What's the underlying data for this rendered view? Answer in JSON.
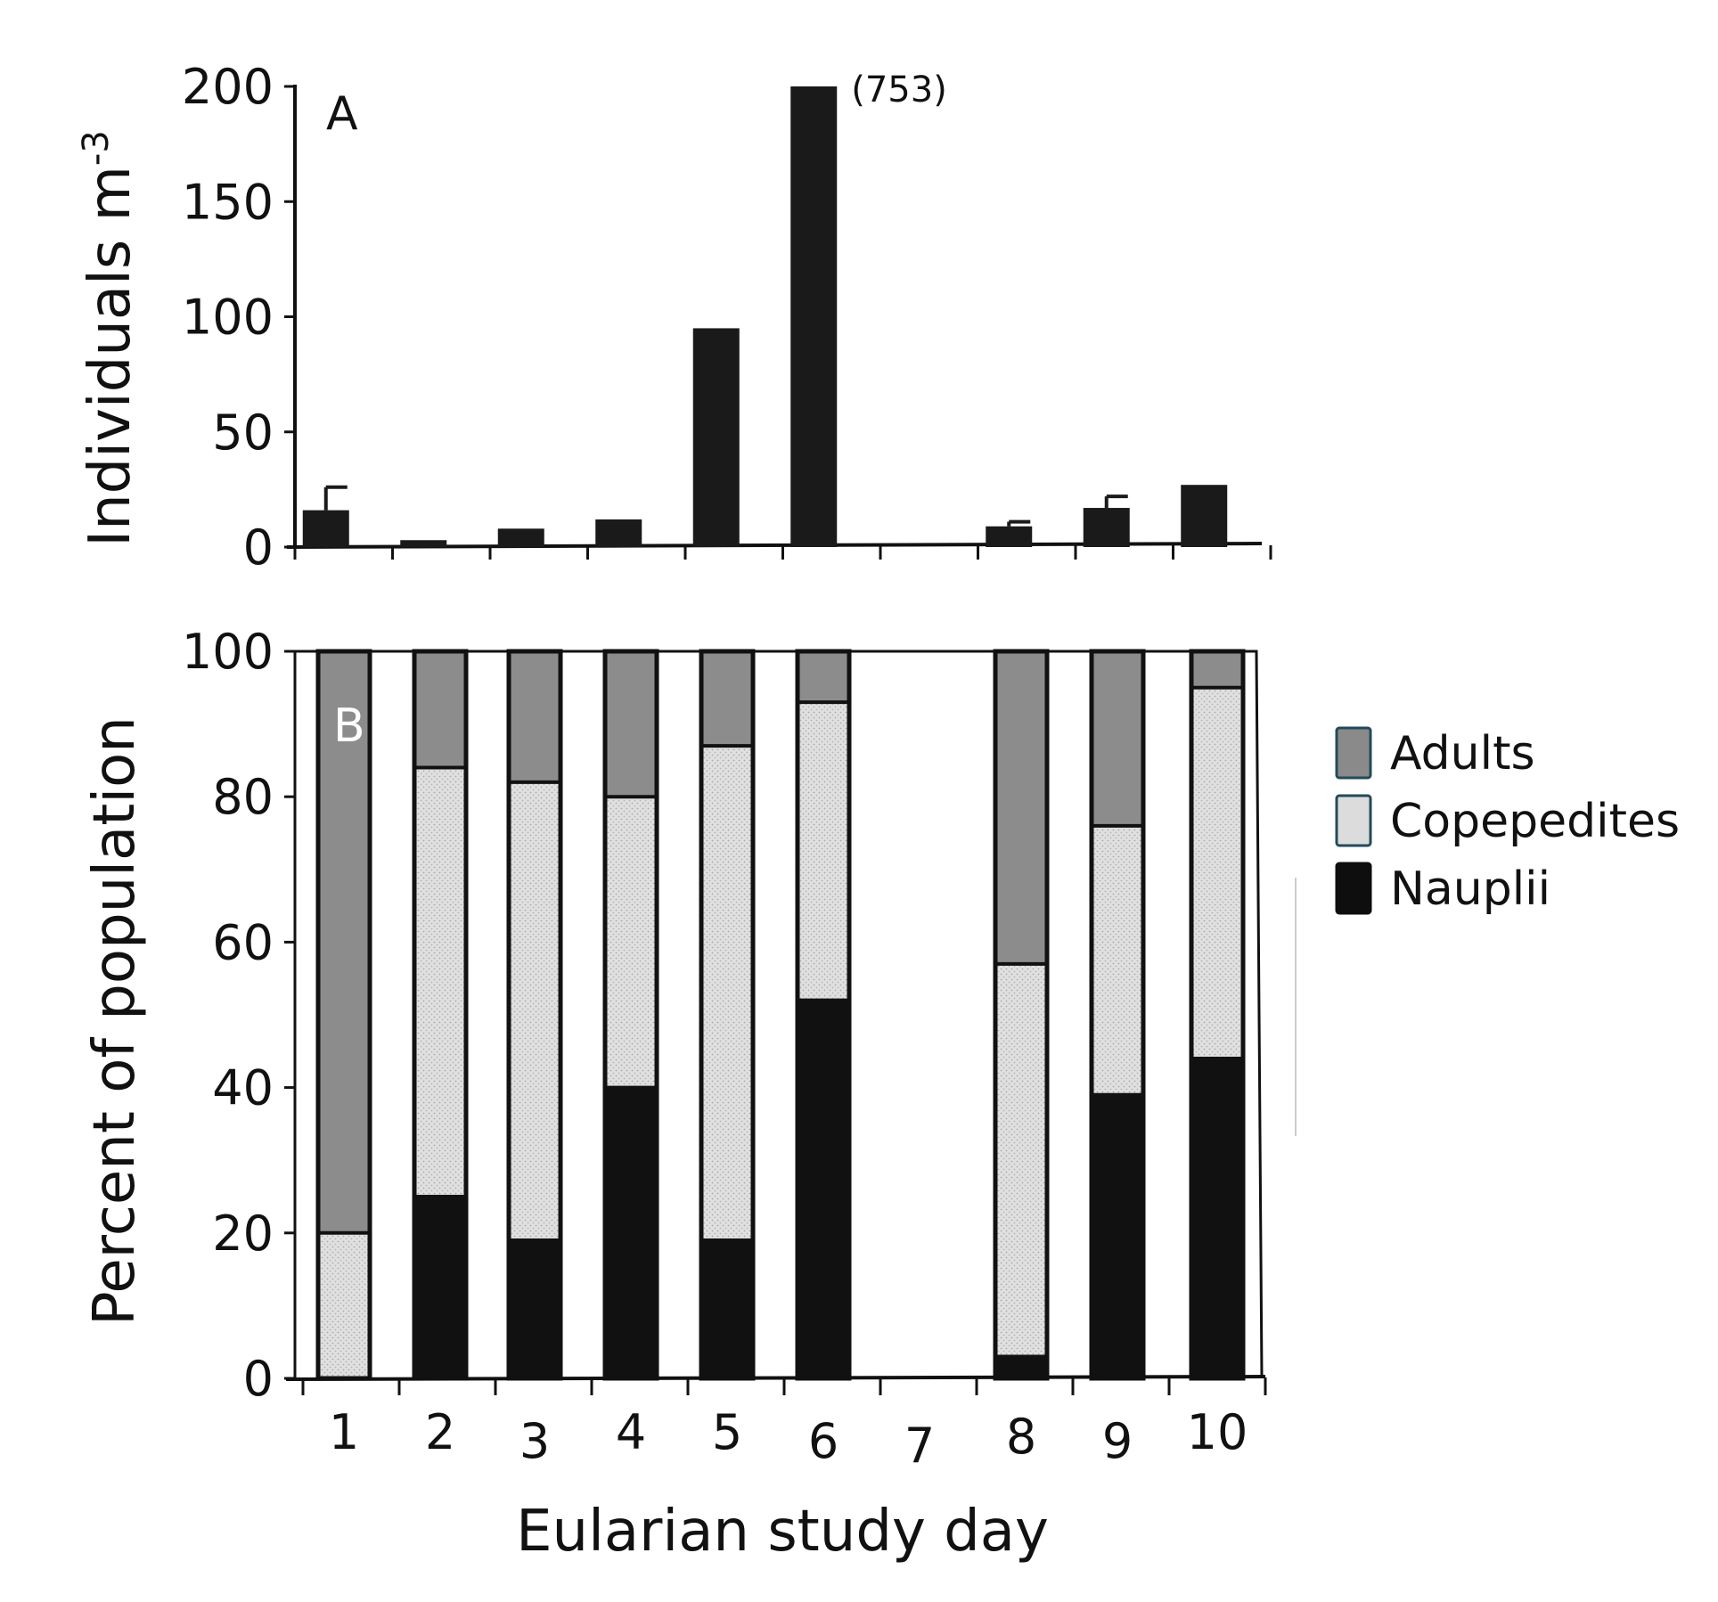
{
  "chart_data": [
    {
      "panel": "A",
      "type": "bar",
      "ylabel": "Individuals m",
      "ylabel_superscript": "-3",
      "ylim": [
        0,
        200
      ],
      "yticks": [
        "0",
        "50",
        "100",
        "150",
        "200"
      ],
      "categories": [
        "1",
        "2",
        "3",
        "4",
        "5",
        "6",
        "7",
        "8",
        "9",
        "10"
      ],
      "values": [
        16,
        3,
        8,
        12,
        95,
        200,
        0,
        9,
        17,
        27
      ],
      "error_upper": [
        26,
        null,
        null,
        null,
        null,
        null,
        null,
        11,
        22,
        null
      ],
      "annotation": {
        "category": "6",
        "text": "(753)"
      },
      "color": "#1a1a1a"
    },
    {
      "panel": "B",
      "type": "bar",
      "stacked": true,
      "xlabel": "Eularian study day",
      "ylabel": "Percent of population",
      "ylim": [
        0,
        100
      ],
      "yticks": [
        "0",
        "20",
        "40",
        "60",
        "80",
        "100"
      ],
      "categories": [
        "1",
        "2",
        "3",
        "4",
        "5",
        "6",
        "7",
        "8",
        "9",
        "10"
      ],
      "series": [
        {
          "name": "Nauplii",
          "color": "#111111",
          "values": [
            0,
            25,
            19,
            40,
            19,
            52,
            null,
            3,
            39,
            44
          ]
        },
        {
          "name": "Copepedites",
          "color": "#dcdcdc",
          "values": [
            20,
            59,
            63,
            40,
            68,
            41,
            null,
            54,
            37,
            51
          ]
        },
        {
          "name": "Adults",
          "color": "#8c8c8c",
          "values": [
            80,
            16,
            18,
            20,
            13,
            7,
            null,
            43,
            24,
            5
          ]
        }
      ],
      "legend": [
        "Adults",
        "Copepedites",
        "Nauplii"
      ],
      "legend_position": "right"
    }
  ]
}
